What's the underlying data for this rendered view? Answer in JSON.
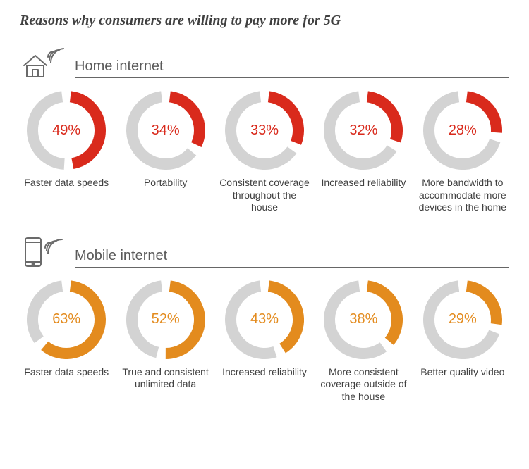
{
  "title": "Reasons why consumers are willing to pay more for 5G",
  "donut": {
    "size": 112,
    "stroke": 16,
    "track_color": "#d3d3d3",
    "gap_deg": 14,
    "start_deg": -90
  },
  "sections": [
    {
      "key": "home",
      "label": "Home internet",
      "color": "#d92a1c",
      "icon": "house",
      "items": [
        {
          "pct": 49,
          "label": "Faster data speeds"
        },
        {
          "pct": 34,
          "label": "Portability"
        },
        {
          "pct": 33,
          "label": "Consistent coverage throughout the house"
        },
        {
          "pct": 32,
          "label": "Increased reliability"
        },
        {
          "pct": 28,
          "label": "More bandwidth to accommodate more devices in the home"
        }
      ]
    },
    {
      "key": "mobile",
      "label": "Mobile internet",
      "color": "#e38b1e",
      "icon": "phone",
      "items": [
        {
          "pct": 63,
          "label": "Faster data speeds"
        },
        {
          "pct": 52,
          "label": "True and consistent unlimited data"
        },
        {
          "pct": 43,
          "label": "Increased reliability"
        },
        {
          "pct": 38,
          "label": "More consistent coverage outside of the house"
        },
        {
          "pct": 29,
          "label": "Better quality video"
        }
      ]
    }
  ]
}
